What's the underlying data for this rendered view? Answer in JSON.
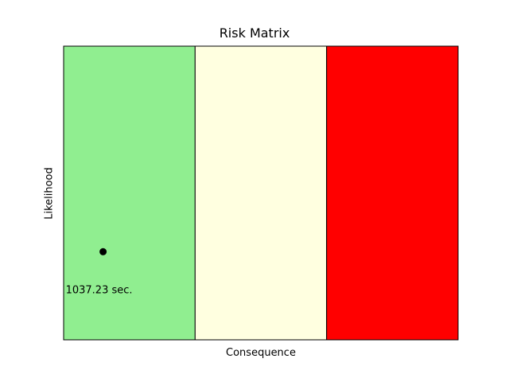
{
  "chart_data": {
    "type": "scatter",
    "title": "Risk Matrix",
    "xlabel": "Consequence",
    "ylabel": "Likelihood",
    "xlim": [
      0,
      3
    ],
    "ylim": [
      0,
      1
    ],
    "bands": [
      {
        "x0": 0,
        "x1": 1,
        "color": "#90EE90"
      },
      {
        "x0": 1,
        "x1": 2,
        "color": "#FFFFE0"
      },
      {
        "x0": 2,
        "x1": 3,
        "color": "#FF0000"
      }
    ],
    "points": [
      {
        "x": 0.3,
        "y": 0.3,
        "label": "1037.23 sec.",
        "color": "#000000"
      }
    ],
    "grid": false,
    "ticks": false
  }
}
